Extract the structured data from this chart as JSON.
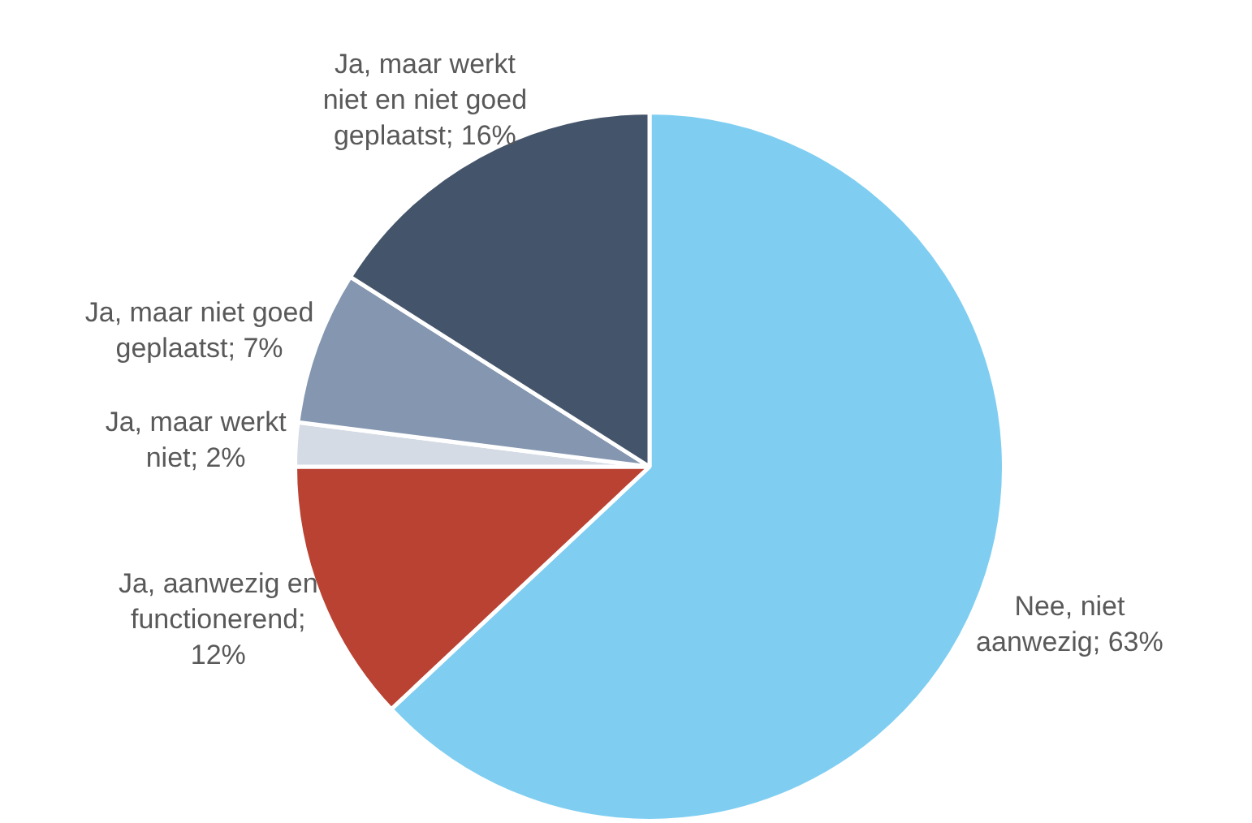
{
  "chart_data": {
    "type": "pie",
    "categories": [
      "Nee, niet aanwezig; 63%",
      "Ja, aanwezig en functionerend; 12%",
      "Ja, maar werkt niet; 2%",
      "Ja, maar niet goed geplaatst; 7%",
      "Ja, maar werkt niet en niet goed geplaatst; 16%"
    ],
    "values": [
      63,
      12,
      2,
      7,
      16
    ],
    "colors": [
      "#7fcef2",
      "#b94232",
      "#d5dbe5",
      "#8496b0",
      "#44546a"
    ],
    "legend": false
  }
}
